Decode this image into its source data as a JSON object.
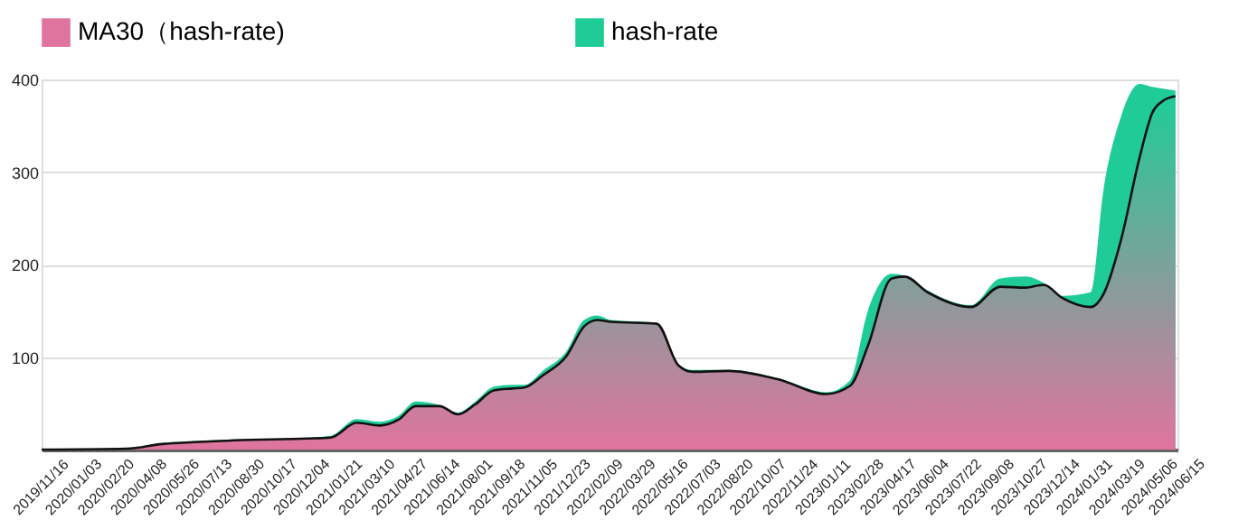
{
  "chart_data": {
    "type": "area",
    "legend": "top",
    "grid": "y",
    "ylim": [
      0,
      400
    ],
    "yticks": [
      100,
      200,
      300,
      400
    ],
    "xlim": [
      "2019-11-16",
      "2024-06-15"
    ],
    "xticks": [
      {
        "value": "2019-11-16",
        "label": "2019/11/16"
      },
      {
        "value": "2020-01-03",
        "label": "2020/01/03"
      },
      {
        "value": "2020-02-20",
        "label": "2020/02/20"
      },
      {
        "value": "2020-04-08",
        "label": "2020/04/08"
      },
      {
        "value": "2020-05-26",
        "label": "2020/05/26"
      },
      {
        "value": "2020-07-13",
        "label": "2020/07/13"
      },
      {
        "value": "2020-08-30",
        "label": "2020/08/30"
      },
      {
        "value": "2020-10-17",
        "label": "2020/10/17"
      },
      {
        "value": "2020-12-04",
        "label": "2020/12/04"
      },
      {
        "value": "2021-01-21",
        "label": "2021/01/21"
      },
      {
        "value": "2021-03-10",
        "label": "2021/03/10"
      },
      {
        "value": "2021-04-27",
        "label": "2021/04/27"
      },
      {
        "value": "2021-06-14",
        "label": "2021/06/14"
      },
      {
        "value": "2021-08-01",
        "label": "2021/08/01"
      },
      {
        "value": "2021-09-18",
        "label": "2021/09/18"
      },
      {
        "value": "2021-11-05",
        "label": "2021/11/05"
      },
      {
        "value": "2021-12-23",
        "label": "2021/12/23"
      },
      {
        "value": "2022-02-09",
        "label": "2022/02/09"
      },
      {
        "value": "2022-03-29",
        "label": "2022/03/29"
      },
      {
        "value": "2022-05-16",
        "label": "2022/05/16"
      },
      {
        "value": "2022-07-03",
        "label": "2022/07/03"
      },
      {
        "value": "2022-08-20",
        "label": "2022/08/20"
      },
      {
        "value": "2022-10-07",
        "label": "2022/10/07"
      },
      {
        "value": "2022-11-24",
        "label": "2022/11/24"
      },
      {
        "value": "2023-01-11",
        "label": "2023/01/11"
      },
      {
        "value": "2023-02-28",
        "label": "2023/02/28"
      },
      {
        "value": "2023-04-17",
        "label": "2023/04/17"
      },
      {
        "value": "2023-06-04",
        "label": "2023/06/04"
      },
      {
        "value": "2023-07-22",
        "label": "2023/07/22"
      },
      {
        "value": "2023-09-08",
        "label": "2023/09/08"
      },
      {
        "value": "2023-10-27",
        "label": "2023/10/27"
      },
      {
        "value": "2023-12-14",
        "label": "2023/12/14"
      },
      {
        "value": "2024-01-31",
        "label": "2024/01/31"
      },
      {
        "value": "2024-03-19",
        "label": "2024/03/19"
      },
      {
        "value": "2024-05-06",
        "label": "2024/05/06"
      },
      {
        "value": "2024-06-15",
        "label": "2024/06/15"
      }
    ],
    "x": [
      "2019-11-16",
      "2020-03-20",
      "2020-05-12",
      "2020-06-27",
      "2020-08-27",
      "2020-12-12",
      "2021-01-15",
      "2021-02-22",
      "2021-03-28",
      "2021-04-24",
      "2021-05-20",
      "2021-06-24",
      "2021-07-21",
      "2021-08-16",
      "2021-09-12",
      "2021-10-09",
      "2021-10-27",
      "2021-11-23",
      "2021-12-28",
      "2022-01-23",
      "2022-02-11",
      "2022-03-04",
      "2022-05-10",
      "2022-06-11",
      "2022-07-02",
      "2022-08-24",
      "2022-11-04",
      "2023-01-15",
      "2023-02-19",
      "2023-03-17",
      "2023-04-21",
      "2023-05-10",
      "2023-06-13",
      "2023-08-16",
      "2023-09-28",
      "2023-11-04",
      "2023-12-01",
      "2023-12-28",
      "2024-02-08",
      "2024-02-27",
      "2024-03-24",
      "2024-04-20",
      "2024-05-09",
      "2024-05-25",
      "2024-06-12"
    ],
    "series": [
      {
        "name": "MA30（hash-rate)",
        "color": "#e0749f",
        "values": [
          0,
          1,
          6,
          8,
          10,
          12,
          13,
          29,
          26,
          32,
          47,
          47,
          38,
          49,
          64,
          66,
          67,
          80,
          101,
          133,
          140,
          138,
          136,
          91,
          84,
          85,
          76,
          60,
          69,
          112,
          185,
          187,
          170,
          154,
          176,
          175,
          178,
          164,
          154,
          168,
          227,
          315,
          364,
          377,
          382
        ]
      },
      {
        "name": "hash-rate",
        "color": "#1fcc98",
        "values": [
          0,
          1,
          7,
          9,
          11,
          13,
          15,
          33,
          30,
          36,
          52,
          48,
          40,
          52,
          68,
          70,
          70,
          85,
          106,
          140,
          145,
          140,
          137,
          92,
          86,
          86,
          77,
          62,
          75,
          150,
          190,
          188,
          172,
          156,
          185,
          187,
          180,
          166,
          170,
          280,
          360,
          395,
          392,
          390,
          388
        ]
      }
    ]
  }
}
